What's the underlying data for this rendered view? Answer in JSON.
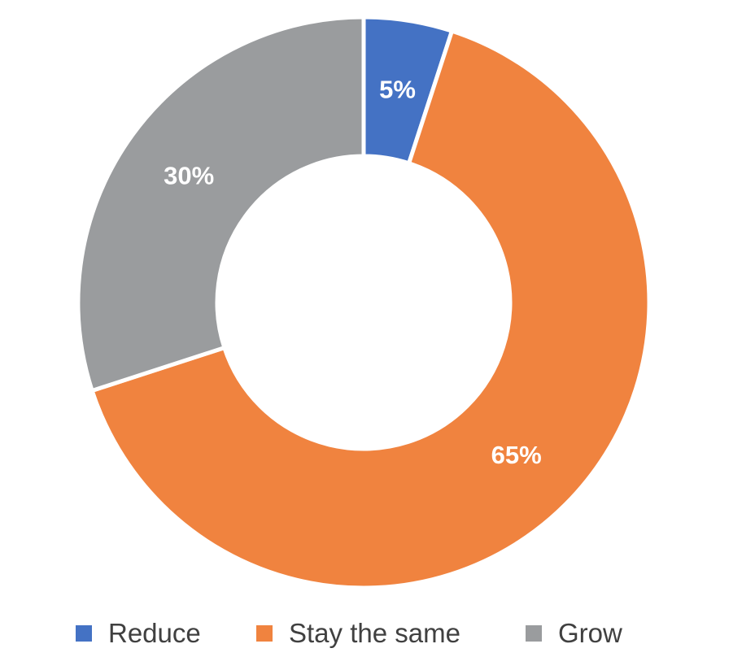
{
  "chart_data": {
    "type": "pie",
    "donut": true,
    "categories": [
      "Reduce",
      "Stay the same",
      "Grow"
    ],
    "values": [
      5,
      65,
      30
    ],
    "unit": "%",
    "data_labels": [
      "5%",
      "65%",
      "30%"
    ],
    "colors": [
      "#4472C4",
      "#F0833F",
      "#9A9C9E"
    ],
    "start": "12 o'clock",
    "direction": "clockwise",
    "legend_position": "bottom"
  },
  "legend": {
    "items": [
      {
        "label": "Reduce",
        "color": "#4472C4"
      },
      {
        "label": "Stay the same",
        "color": "#F0833F"
      },
      {
        "label": "Grow",
        "color": "#9A9C9E"
      }
    ]
  }
}
